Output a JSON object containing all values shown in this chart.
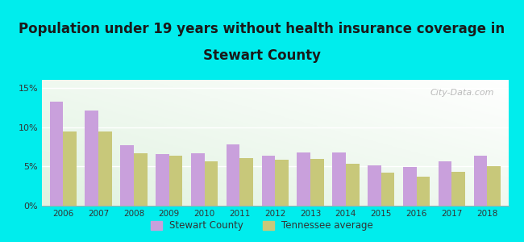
{
  "title_line1": "Population under 19 years without health insurance coverage in",
  "title_line2": "Stewart County",
  "years": [
    2006,
    2007,
    2008,
    2009,
    2010,
    2011,
    2012,
    2013,
    2014,
    2015,
    2016,
    2017,
    2018
  ],
  "stewart_county": [
    13.2,
    12.1,
    7.7,
    6.6,
    6.7,
    7.8,
    6.4,
    6.8,
    6.8,
    5.1,
    4.9,
    5.6,
    6.4
  ],
  "tennessee_avg": [
    9.4,
    9.4,
    6.7,
    6.4,
    5.6,
    6.1,
    5.8,
    6.0,
    5.3,
    4.2,
    3.7,
    4.3,
    5.0
  ],
  "bar_color_stewart": "#c9a0dc",
  "bar_color_tennessee": "#c8c87a",
  "background_outer": "#00eded",
  "ylim": [
    0,
    16
  ],
  "yticks": [
    0,
    5,
    10,
    15
  ],
  "title_fontsize": 12,
  "title_color": "#1a1a1a",
  "legend_label_stewart": "Stewart County",
  "legend_label_tennessee": "Tennessee average",
  "bar_width": 0.38,
  "watermark": "City-Data.com"
}
